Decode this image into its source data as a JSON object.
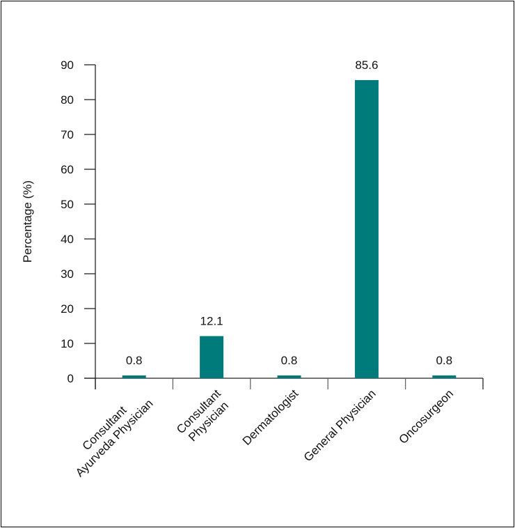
{
  "chart_data": {
    "type": "bar",
    "title": "",
    "xlabel": "",
    "ylabel": "Percentage (%)",
    "ylim": [
      0,
      90
    ],
    "yticks": [
      0,
      10,
      20,
      30,
      40,
      50,
      60,
      70,
      80,
      90
    ],
    "categories": [
      [
        "Consultant",
        "Ayurveda Physician"
      ],
      [
        "Consultant",
        "Physician"
      ],
      [
        "Dermatologist"
      ],
      [
        "General Physician"
      ],
      [
        "Oncosurgeon"
      ]
    ],
    "values": [
      0.8,
      12.1,
      0.8,
      85.6,
      0.8
    ],
    "data_labels": [
      "0.8",
      "12.1",
      "0.8",
      "85.6",
      "0.8"
    ],
    "bar_color": "#007b7b",
    "grid": false
  }
}
